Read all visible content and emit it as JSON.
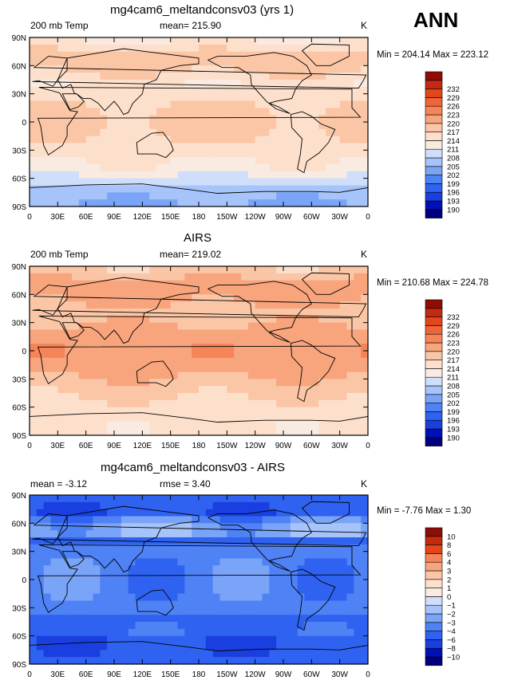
{
  "season_label": "ANN",
  "colors": {
    "temp_scale": [
      "#00007f",
      "#0010b8",
      "#1a3fe0",
      "#2f62f0",
      "#4f82f5",
      "#7aa4f7",
      "#a6c4f9",
      "#cfdffb",
      "#f9ebe2",
      "#fde0cc",
      "#fbc6a6",
      "#f8a47c",
      "#f58458",
      "#f06538",
      "#e4461c",
      "#c42a10",
      "#8f0c07"
    ],
    "diff_scale": [
      "#00007f",
      "#0010b8",
      "#1a3fe0",
      "#2f62f0",
      "#4f82f5",
      "#7aa4f7",
      "#a6c4f9",
      "#cfdffb",
      "#f9ebe2",
      "#fde0cc",
      "#fbc6a6",
      "#f8a47c",
      "#f58458",
      "#e4461c",
      "#c42a10",
      "#8f0c07"
    ]
  },
  "chart_data": [
    {
      "type": "heatmap",
      "title": "mg4cam6_meltandconsv03 (yrs 1)",
      "left_label": "200 mb Temp",
      "mean_text": "mean= 215.90",
      "units": "K",
      "min_text": "Min = 204.14 Max = 223.12",
      "colorbar_ticks": [
        "190",
        "193",
        "196",
        "199",
        "202",
        "205",
        "208",
        "211",
        "214",
        "217",
        "220",
        "223",
        "226",
        "229",
        "232"
      ],
      "lat_ticks": [
        "90S",
        "60S",
        "30S",
        "0",
        "30N",
        "60N",
        "90N"
      ],
      "lon_ticks": [
        "0",
        "30E",
        "60E",
        "90E",
        "120E",
        "150E",
        "180",
        "150W",
        "120W",
        "90W",
        "60W",
        "30W",
        "0"
      ]
    },
    {
      "type": "heatmap",
      "title": "AIRS",
      "left_label": "200 mb Temp",
      "mean_text": "mean= 219.02",
      "units": "K",
      "min_text": "Min = 210.68 Max = 224.78",
      "colorbar_ticks": [
        "190",
        "193",
        "196",
        "199",
        "202",
        "205",
        "208",
        "211",
        "214",
        "217",
        "220",
        "223",
        "226",
        "229",
        "232"
      ],
      "lat_ticks": [
        "90S",
        "60S",
        "30S",
        "0",
        "30N",
        "60N",
        "90N"
      ],
      "lon_ticks": [
        "0",
        "30E",
        "60E",
        "90E",
        "120E",
        "150E",
        "180",
        "150W",
        "120W",
        "90W",
        "60W",
        "30W",
        "0"
      ]
    },
    {
      "type": "heatmap",
      "title": "mg4cam6_meltandconsv03 - AIRS",
      "left_label": "mean = -3.12",
      "mean_text": "rmse = 3.40",
      "units": "K",
      "min_text": "Min = -7.76 Max = 1.30",
      "colorbar_ticks": [
        "−10",
        "−8",
        "−6",
        "−4",
        "−3",
        "−2",
        "−1",
        "0",
        "1",
        "2",
        "3",
        "4",
        "6",
        "8",
        "10"
      ],
      "lat_ticks": [
        "90S",
        "60S",
        "30S",
        "0",
        "30N",
        "60N",
        "90N"
      ],
      "lon_ticks": [
        "0",
        "30E",
        "60E",
        "90E",
        "120E",
        "150E",
        "180",
        "150W",
        "120W",
        "90W",
        "60W",
        "30W",
        "0"
      ]
    }
  ]
}
